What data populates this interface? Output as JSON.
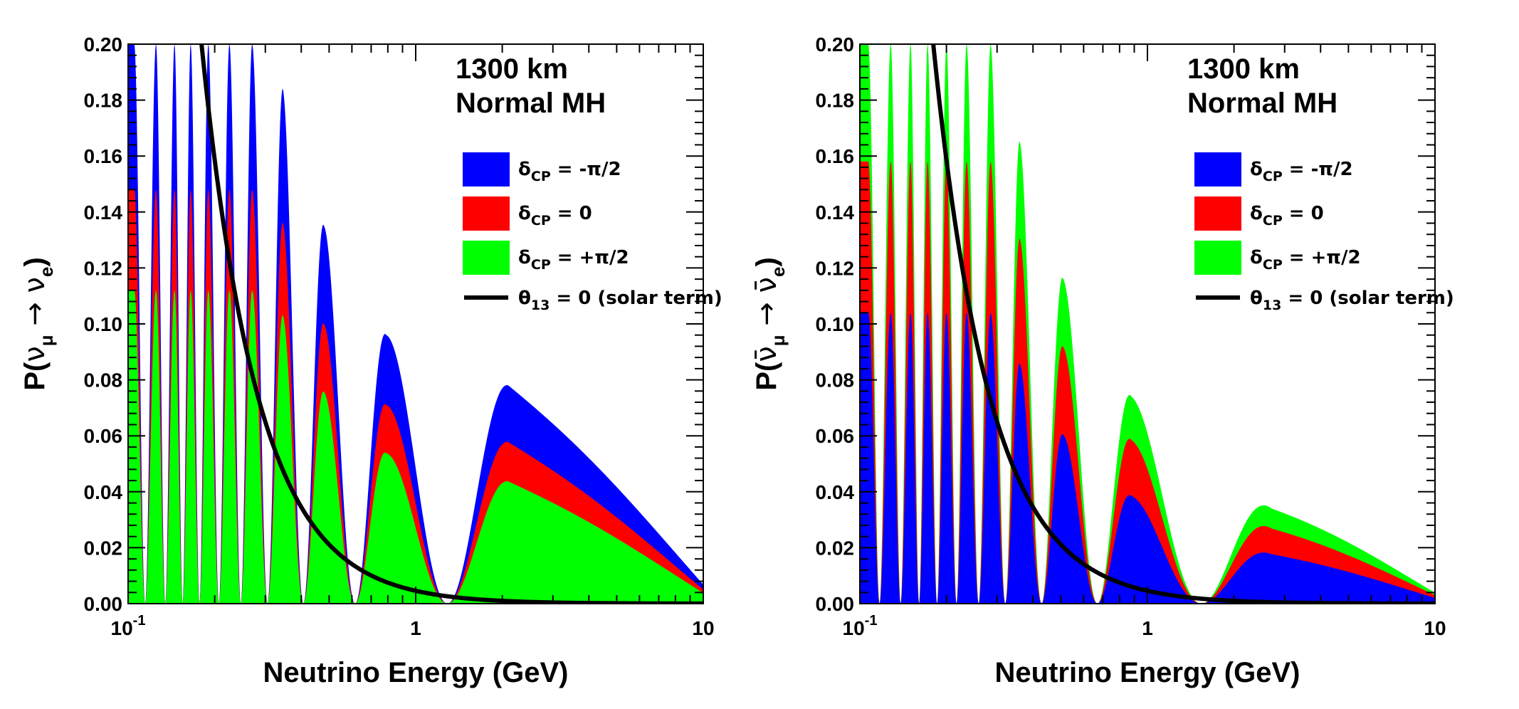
{
  "chart_data": [
    {
      "type": "area",
      "xlabel": "Neutrino Energy (GeV)",
      "ylabel": "P(ν_μ → ν_e)",
      "ylabel_parts": {
        "p": "P(",
        "nu1": "ν",
        "sub1": "μ",
        "arrow": " → ",
        "nu2": "ν",
        "sub2": "e",
        "close": ")"
      },
      "xscale": "log",
      "xlim": [
        0.1,
        10
      ],
      "ylim": [
        0,
        0.2
      ],
      "xticks": [
        {
          "v": 0.1,
          "base": "10",
          "sup": "-1"
        },
        {
          "v": 1,
          "base": "1",
          "sup": ""
        },
        {
          "v": 10,
          "base": "10",
          "sup": ""
        }
      ],
      "yticks": [
        "0.00",
        "0.02",
        "0.04",
        "0.06",
        "0.08",
        "0.10",
        "0.12",
        "0.14",
        "0.16",
        "0.18",
        "0.20"
      ],
      "annotation": [
        "1300 km",
        "Normal MH"
      ],
      "legend_position": "top-right",
      "solar": {
        "name_sym": "θ",
        "name_sub": "13",
        "name_rest": " = 0 (solar term)",
        "color": "#000000"
      },
      "series": [
        {
          "name_sym": "δ",
          "name_sub": "CP",
          "name_rest": " = -π/2",
          "color": "#0000ff",
          "amp": 1.0
        },
        {
          "name_sym": "δ",
          "name_sub": "CP",
          "name_rest": " = 0",
          "color": "#ff0000",
          "amp": 0.74
        },
        {
          "name_sym": "δ",
          "name_sub": "CP",
          "name_rest": " = +π/2",
          "color": "#00ff00",
          "amp": 0.56
        }
      ],
      "draw_order": [
        0,
        1,
        2
      ],
      "peaks": [
        {
          "E": 2.1,
          "P": 0.078
        },
        {
          "E": 0.79,
          "P": 0.096
        },
        {
          "E": 0.48,
          "P": 0.135
        },
        {
          "E": 0.345,
          "P": 0.184
        },
        {
          "E": 0.27,
          "P": 0.2
        },
        {
          "E": 0.225,
          "P": 0.2
        },
        {
          "E": 0.19,
          "P": 0.2
        },
        {
          "E": 0.165,
          "P": 0.2
        },
        {
          "E": 0.145,
          "P": 0.2
        },
        {
          "E": 0.125,
          "P": 0.2
        },
        {
          "E": 0.105,
          "P": 0.2
        }
      ]
    },
    {
      "type": "area",
      "xlabel": "Neutrino Energy (GeV)",
      "ylabel": "P(ν̄_μ → ν̄_e)",
      "ylabel_parts": {
        "p": "P(",
        "nu1": "ν̄",
        "sub1": "μ",
        "arrow": " → ",
        "nu2": "ν̄",
        "sub2": "e",
        "close": ")"
      },
      "xscale": "log",
      "xlim": [
        0.1,
        10
      ],
      "ylim": [
        0,
        0.2
      ],
      "xticks": [
        {
          "v": 0.1,
          "base": "10",
          "sup": "-1"
        },
        {
          "v": 1,
          "base": "1",
          "sup": ""
        },
        {
          "v": 10,
          "base": "10",
          "sup": ""
        }
      ],
      "yticks": [
        "0.00",
        "0.02",
        "0.04",
        "0.06",
        "0.08",
        "0.10",
        "0.12",
        "0.14",
        "0.16",
        "0.18",
        "0.20"
      ],
      "annotation": [
        "1300 km",
        "Normal MH"
      ],
      "legend_position": "top-right",
      "solar": {
        "name_sym": "θ",
        "name_sub": "13",
        "name_rest": " = 0 (solar term)",
        "color": "#000000"
      },
      "series": [
        {
          "name_sym": "δ",
          "name_sub": "CP",
          "name_rest": " = -π/2",
          "color": "#0000ff",
          "amp": 0.52
        },
        {
          "name_sym": "δ",
          "name_sub": "CP",
          "name_rest": " = 0",
          "color": "#ff0000",
          "amp": 0.79
        },
        {
          "name_sym": "δ",
          "name_sub": "CP",
          "name_rest": " = +π/2",
          "color": "#00ff00",
          "amp": 1.0
        }
      ],
      "draw_order": [
        2,
        1,
        0
      ],
      "peaks": [
        {
          "E": 2.7,
          "P": 0.034
        },
        {
          "E": 0.88,
          "P": 0.074
        },
        {
          "E": 0.51,
          "P": 0.116
        },
        {
          "E": 0.36,
          "P": 0.165
        },
        {
          "E": 0.285,
          "P": 0.2
        },
        {
          "E": 0.235,
          "P": 0.2
        },
        {
          "E": 0.2,
          "P": 0.2
        },
        {
          "E": 0.172,
          "P": 0.2
        },
        {
          "E": 0.15,
          "P": 0.2
        },
        {
          "E": 0.128,
          "P": 0.2
        },
        {
          "E": 0.107,
          "P": 0.2
        }
      ]
    }
  ]
}
